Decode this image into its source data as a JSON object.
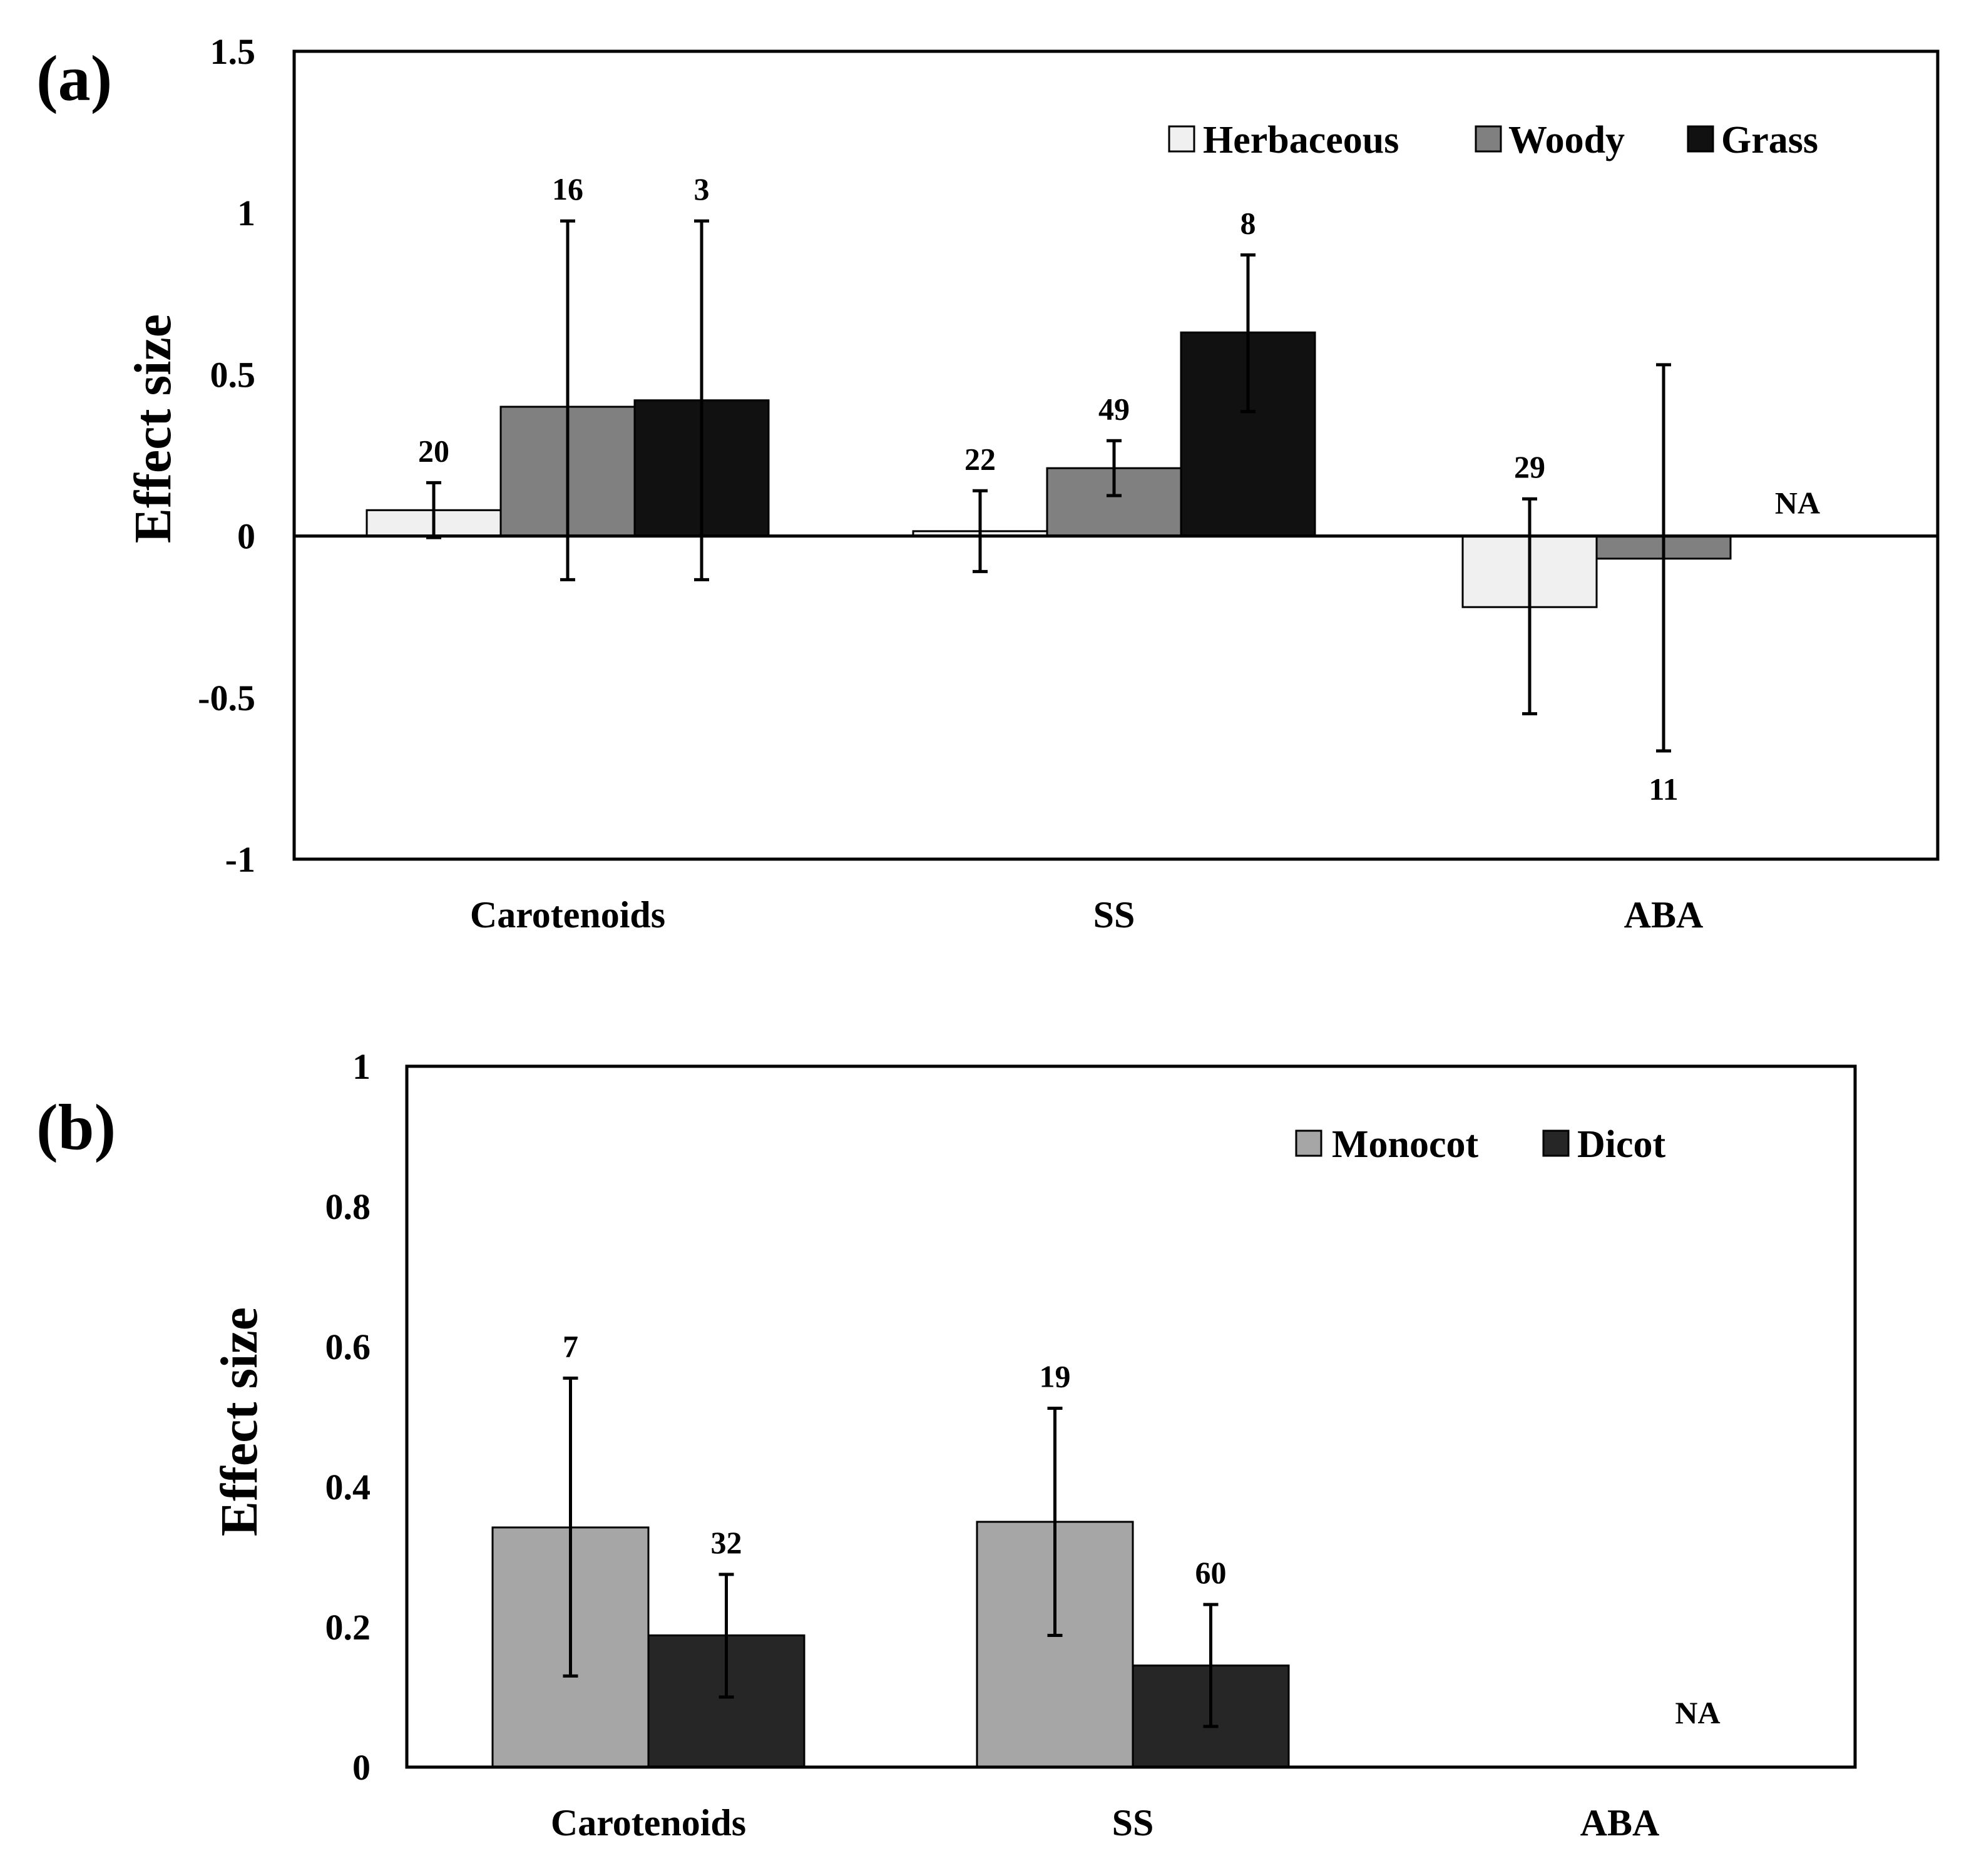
{
  "chart_data": [
    {
      "type": "bar",
      "panel_label": "(a)",
      "ylabel": "Effect size",
      "xlabel": "",
      "ylim": [
        -1,
        1.5
      ],
      "yticks": [
        -1,
        -0.5,
        0,
        0.5,
        1,
        1.5
      ],
      "ytick_labels": [
        "-1",
        "-0.5",
        "0",
        "0.5",
        "1",
        "1.5"
      ],
      "categories": [
        "Carotenoids",
        "SS",
        "ABA"
      ],
      "legend_position": "top-right",
      "series": [
        {
          "name": "Herbaceous",
          "color": "#f0f0f0",
          "values": [
            0.08,
            0.015,
            -0.22
          ],
          "err_low": [
            -0.005,
            -0.11,
            -0.55
          ],
          "err_high": [
            0.165,
            0.14,
            0.115
          ],
          "n": [
            "20",
            "22",
            "29"
          ]
        },
        {
          "name": "Woody",
          "color": "#808080",
          "values": [
            0.4,
            0.21,
            -0.07
          ],
          "err_low": [
            -0.135,
            0.125,
            -0.665
          ],
          "err_high": [
            0.975,
            0.295,
            0.53
          ],
          "n": [
            "16",
            "49",
            "11"
          ]
        },
        {
          "name": "Grass",
          "color": "#111111",
          "values": [
            0.42,
            0.63,
            null
          ],
          "err_low": [
            -0.135,
            0.385,
            null
          ],
          "err_high": [
            0.975,
            0.87,
            null
          ],
          "n": [
            "3",
            "8",
            "NA"
          ]
        }
      ]
    },
    {
      "type": "bar",
      "panel_label": "(b)",
      "ylabel": "Effect size",
      "xlabel": "",
      "ylim": [
        0,
        1
      ],
      "yticks": [
        0,
        0.2,
        0.4,
        0.6,
        0.8,
        1
      ],
      "ytick_labels": [
        "0",
        "0.2",
        "0.4",
        "0.6",
        "0.8",
        "1"
      ],
      "categories": [
        "Carotenoids",
        "SS",
        "ABA"
      ],
      "legend_position": "top-right",
      "series": [
        {
          "name": "Monocot",
          "color": "#a6a6a6",
          "values": [
            0.342,
            0.35,
            null
          ],
          "err_low": [
            0.13,
            0.188,
            null
          ],
          "err_high": [
            0.555,
            0.512,
            null
          ],
          "n": [
            "7",
            "19",
            ""
          ]
        },
        {
          "name": "Dicot",
          "color": "#262626",
          "values": [
            0.188,
            0.145,
            null
          ],
          "err_low": [
            0.1,
            0.058,
            null
          ],
          "err_high": [
            0.275,
            0.232,
            null
          ],
          "n": [
            "32",
            "60",
            "NA"
          ]
        }
      ]
    }
  ]
}
